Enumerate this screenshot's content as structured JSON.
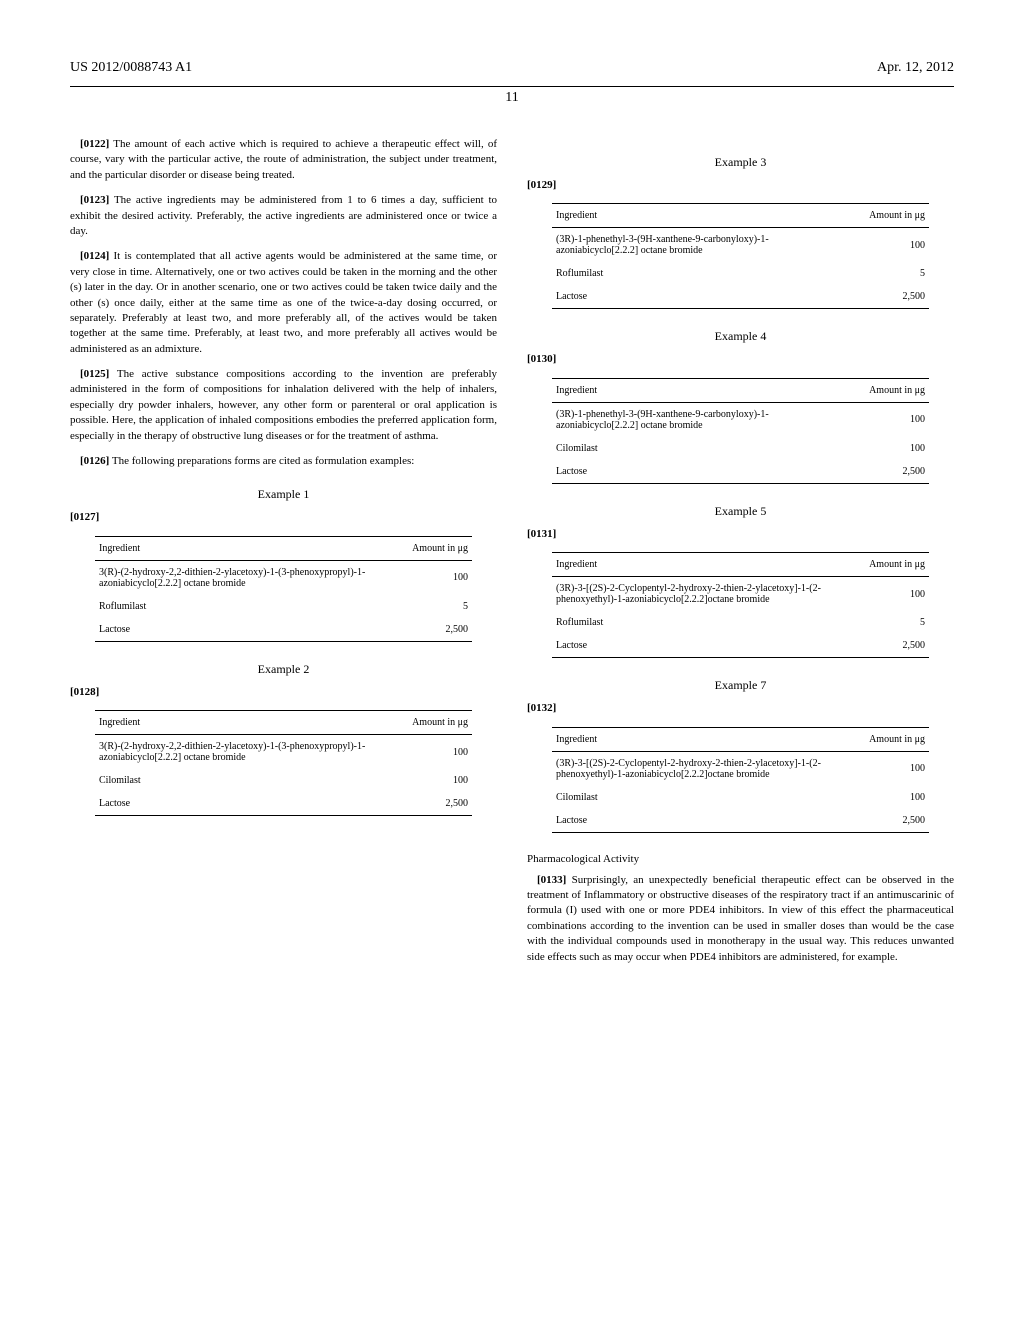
{
  "header": {
    "left": "US 2012/0088743 A1",
    "right": "Apr. 12, 2012"
  },
  "pageNum": "11",
  "col1": {
    "paras": [
      {
        "num": "[0122]",
        "text": "The amount of each active which is required to achieve a therapeutic effect will, of course, vary with the particular active, the route of administration, the subject under treatment, and the particular disorder or disease being treated."
      },
      {
        "num": "[0123]",
        "text": "The active ingredients may be administered from 1 to 6 times a day, sufficient to exhibit the desired activity. Preferably, the active ingredients are administered once or twice a day."
      },
      {
        "num": "[0124]",
        "text": "It is contemplated that all active agents would be administered at the same time, or very close in time. Alternatively, one or two actives could be taken in the morning and the other (s) later in the day. Or in another scenario, one or two actives could be taken twice daily and the other (s) once daily, either at the same time as one of the twice-a-day dosing occurred, or separately. Preferably at least two, and more preferably all, of the actives would be taken together at the same time. Preferably, at least two, and more preferably all actives would be administered as an admixture."
      },
      {
        "num": "[0125]",
        "text": "The active substance compositions according to the invention are preferably administered in the form of compositions for inhalation delivered with the help of inhalers, especially dry powder inhalers, however, any other form or parenteral or oral application is possible. Here, the application of inhaled compositions embodies the preferred application form, especially in the therapy of obstructive lung diseases or for the treatment of asthma."
      },
      {
        "num": "[0126]",
        "text": "The following preparations forms are cited as formulation examples:"
      }
    ],
    "examples": [
      {
        "title": "Example 1",
        "num": "[0127]",
        "headers": [
          "Ingredient",
          "Amount in μg"
        ],
        "rows": [
          {
            "ingredient": "3(R)-(2-hydroxy-2,2-dithien-2-ylacetoxy)-1-(3-phenoxypropyl)-1-azoniabicyclo[2.2.2] octane bromide",
            "amount": "100"
          },
          {
            "ingredient": "Roflumilast",
            "amount": "5"
          },
          {
            "ingredient": "Lactose",
            "amount": "2,500"
          }
        ]
      },
      {
        "title": "Example 2",
        "num": "[0128]",
        "headers": [
          "Ingredient",
          "Amount in μg"
        ],
        "rows": [
          {
            "ingredient": "3(R)-(2-hydroxy-2,2-dithien-2-ylacetoxy)-1-(3-phenoxypropyl)-1-azoniabicyclo[2.2.2] octane bromide",
            "amount": "100"
          },
          {
            "ingredient": "Cilomilast",
            "amount": "100"
          },
          {
            "ingredient": "Lactose",
            "amount": "2,500"
          }
        ]
      }
    ]
  },
  "col2": {
    "examples": [
      {
        "title": "Example 3",
        "num": "[0129]",
        "headers": [
          "Ingredient",
          "Amount in μg"
        ],
        "rows": [
          {
            "ingredient": "(3R)-1-phenethyl-3-(9H-xanthene-9-carbonyloxy)-1-azoniabicyclo[2.2.2] octane bromide",
            "amount": "100"
          },
          {
            "ingredient": "Roflumilast",
            "amount": "5"
          },
          {
            "ingredient": "Lactose",
            "amount": "2,500"
          }
        ]
      },
      {
        "title": "Example 4",
        "num": "[0130]",
        "headers": [
          "Ingredient",
          "Amount in μg"
        ],
        "rows": [
          {
            "ingredient": "(3R)-1-phenethyl-3-(9H-xanthene-9-carbonyloxy)-1-azoniabicyclo[2.2.2] octane bromide",
            "amount": "100"
          },
          {
            "ingredient": "Cilomilast",
            "amount": "100"
          },
          {
            "ingredient": "Lactose",
            "amount": "2,500"
          }
        ]
      },
      {
        "title": "Example 5",
        "num": "[0131]",
        "headers": [
          "Ingredient",
          "Amount in μg"
        ],
        "rows": [
          {
            "ingredient": "(3R)-3-[(2S)-2-Cyclopentyl-2-hydroxy-2-thien-2-ylacetoxy]-1-(2-phenoxyethyl)-1-azoniabicyclo[2.2.2]octane bromide",
            "amount": "100"
          },
          {
            "ingredient": "Roflumilast",
            "amount": "5"
          },
          {
            "ingredient": "Lactose",
            "amount": "2,500"
          }
        ]
      },
      {
        "title": "Example 7",
        "num": "[0132]",
        "headers": [
          "Ingredient",
          "Amount in μg"
        ],
        "rows": [
          {
            "ingredient": "(3R)-3-[(2S)-2-Cyclopentyl-2-hydroxy-2-thien-2-ylacetoxy]-1-(2-phenoxyethyl)-1-azoniabicyclo[2.2.2]octane bromide",
            "amount": "100"
          },
          {
            "ingredient": "Cilomilast",
            "amount": "100"
          },
          {
            "ingredient": "Lactose",
            "amount": "2,500"
          }
        ]
      }
    ],
    "sectionTitle": "Pharmacological Activity",
    "finalPara": {
      "num": "[0133]",
      "text": "Surprisingly, an unexpectedly beneficial therapeutic effect can be observed in the treatment of Inflammatory or obstructive diseases of the respiratory tract if an antimuscarinic of formula (I) used with one or more PDE4 inhibitors. In view of this effect the pharmaceutical combinations according to the invention can be used in smaller doses than would be the case with the individual compounds used in monotherapy in the usual way. This reduces unwanted side effects such as may occur when PDE4 inhibitors are administered, for example."
    }
  }
}
